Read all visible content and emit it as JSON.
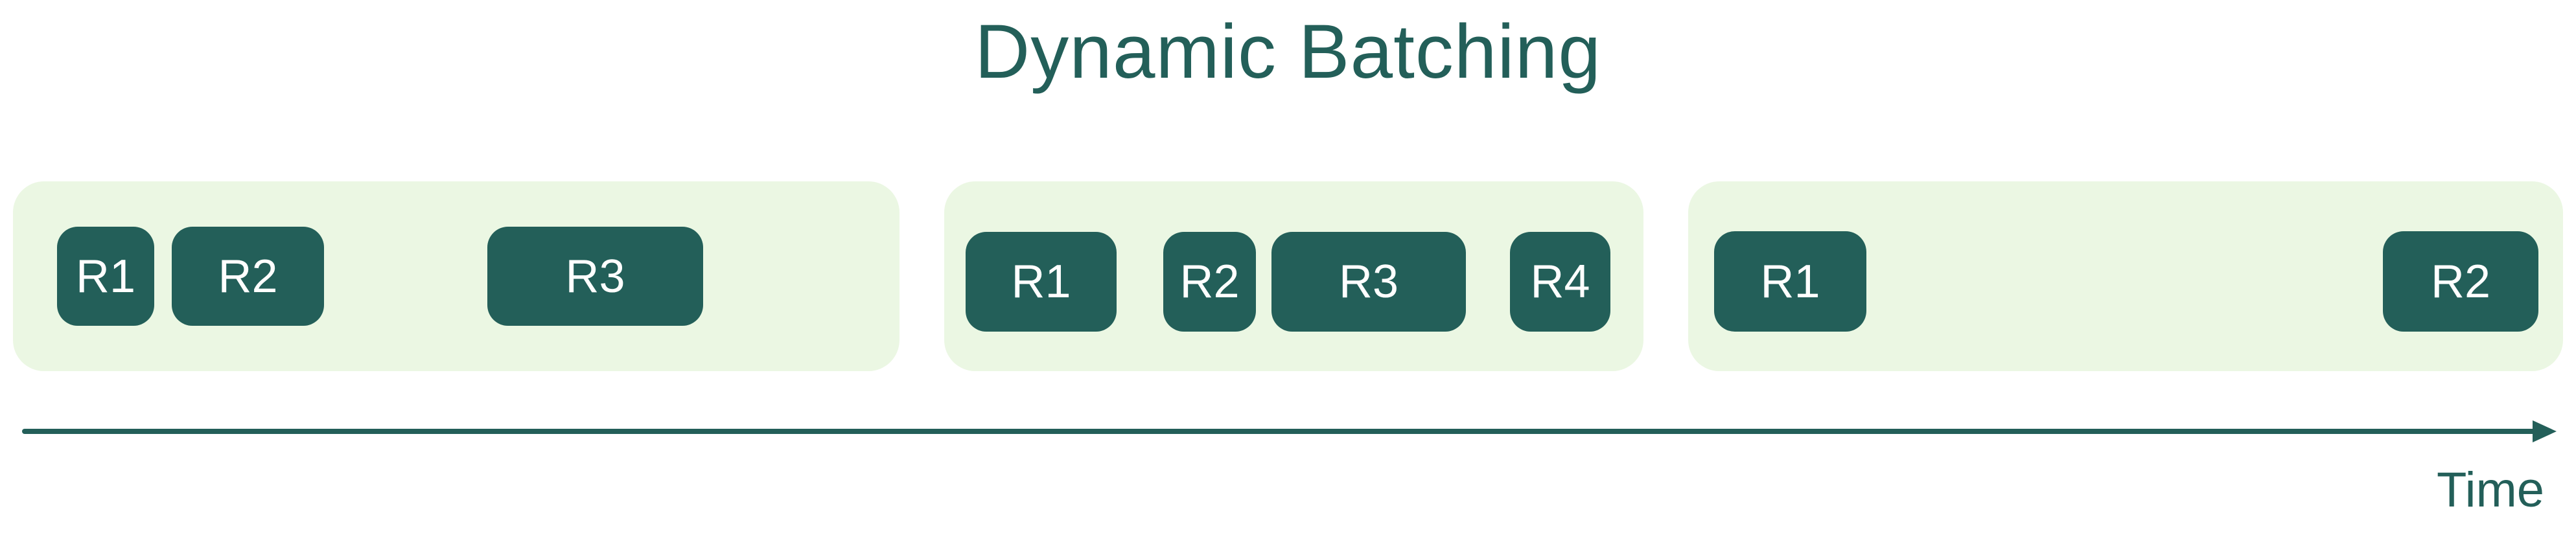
{
  "title": "Dynamic Batching",
  "axis_label": "Time",
  "colors": {
    "batch_background": "#ebf7e3",
    "request_fill": "#235f59",
    "text": "#235f59",
    "request_text": "#ffffff"
  },
  "batches": [
    {
      "requests": [
        "R1",
        "R2",
        "R3"
      ]
    },
    {
      "requests": [
        "R1",
        "R2",
        "R3",
        "R4"
      ]
    },
    {
      "requests": [
        "R1",
        "R2"
      ]
    }
  ]
}
